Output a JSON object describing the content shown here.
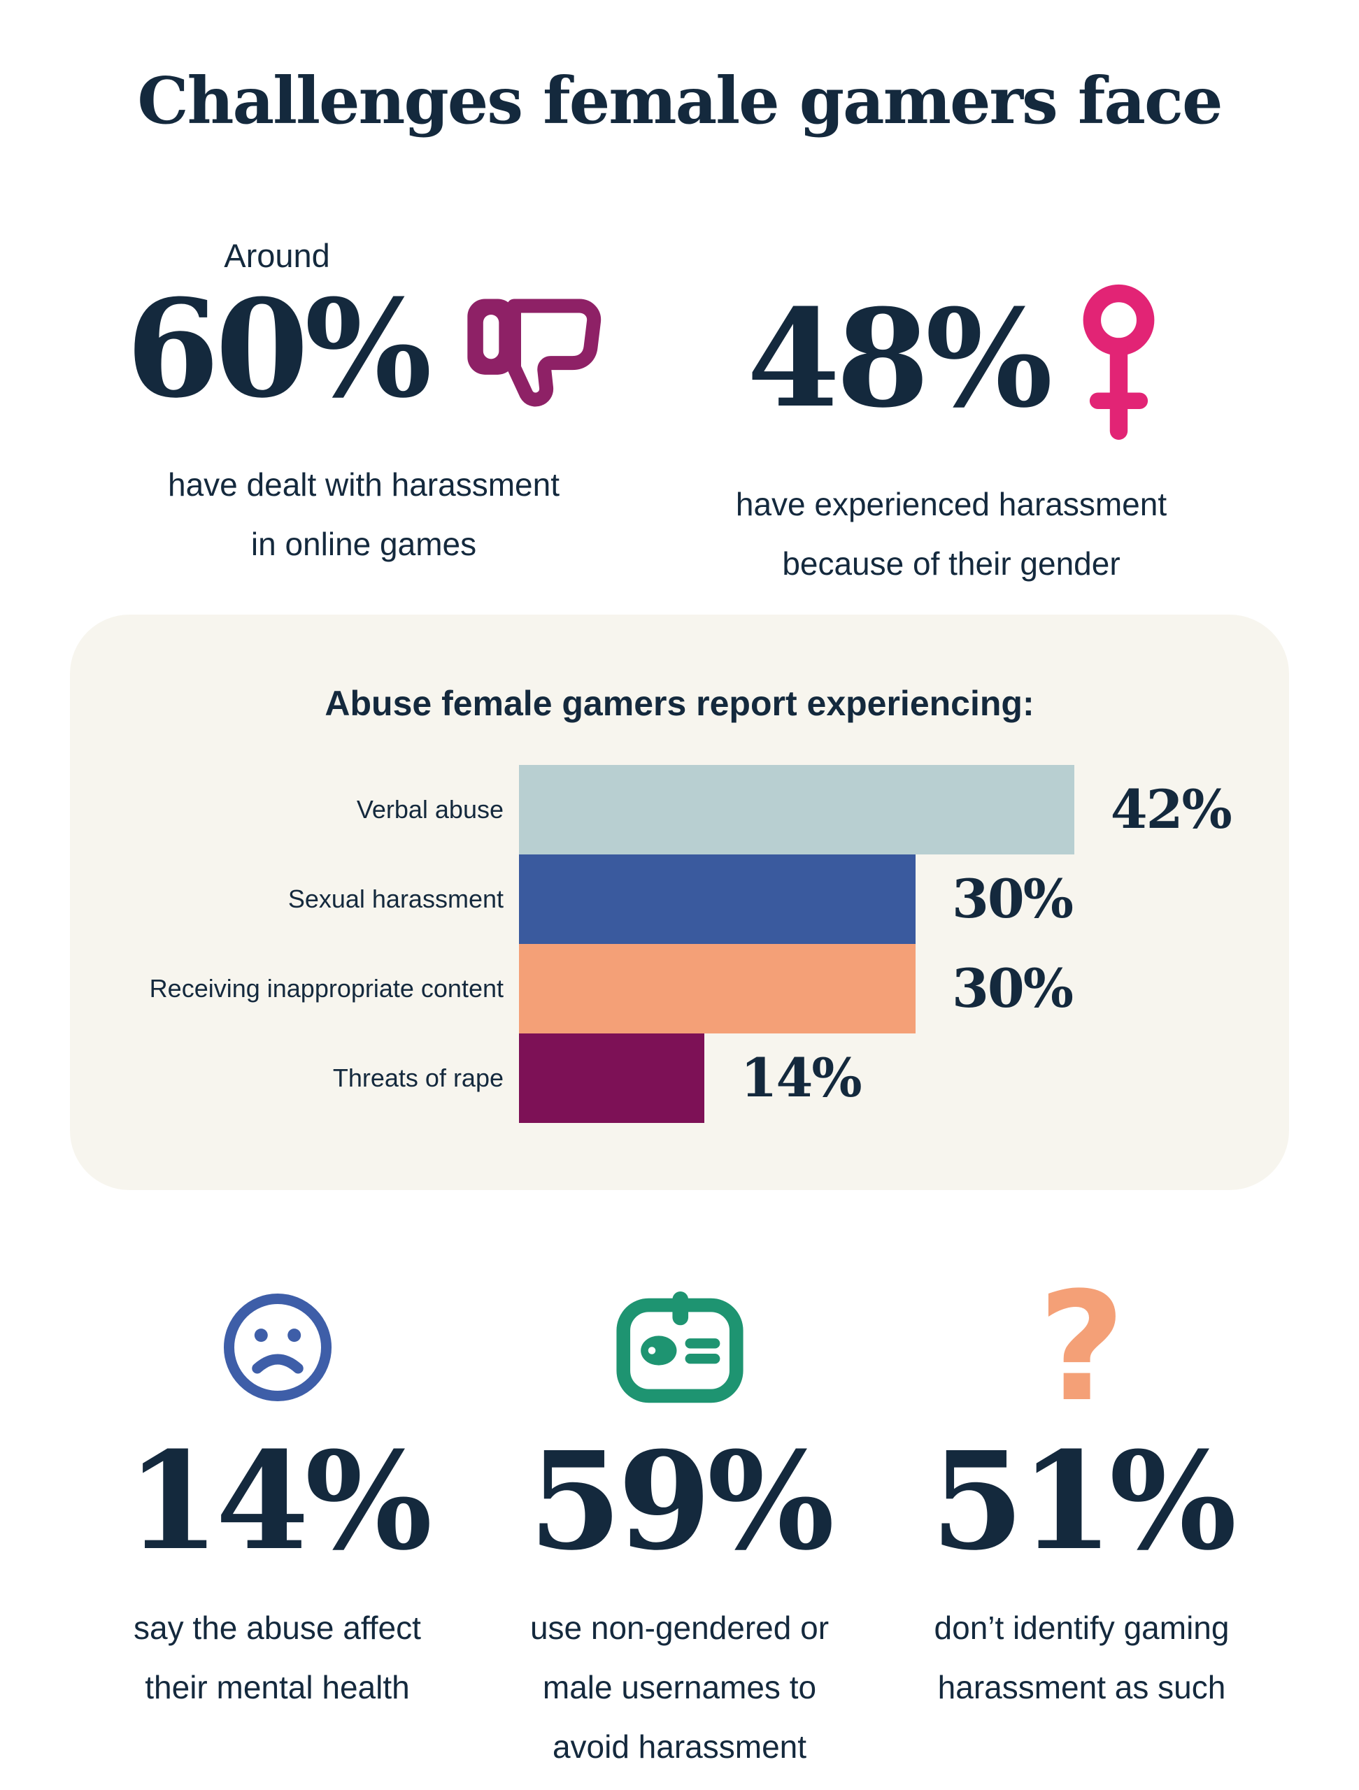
{
  "page_title": "Challenges female gamers face",
  "colors": {
    "text_navy": "#14293D",
    "page_bg": "#FFFFFF",
    "panel_bg": "#F7F5EE",
    "thumbs_down_magenta": "#8E2166",
    "female_pink": "#E22475",
    "sad_face_blue": "#3E5EA8",
    "id_badge_green": "#1E9471",
    "question_orange": "#F4A077"
  },
  "top_stats": [
    {
      "prefix": "Around",
      "value": "60%",
      "caption": "have dealt with harassment\nin online games",
      "icon": "thumbs-down-icon",
      "icon_color": "#8E2166"
    },
    {
      "prefix": "",
      "value": "48%",
      "caption": "have experienced harassment\nbecause of their gender",
      "icon": "female-icon",
      "icon_color": "#E22475"
    }
  ],
  "chart_data": {
    "type": "bar",
    "orientation": "horizontal",
    "title": "Abuse female gamers report experiencing:",
    "categories": [
      "Verbal abuse",
      "Sexual harassment",
      "Receiving inappropriate content",
      "Threats of rape"
    ],
    "values": [
      42,
      30,
      30,
      14
    ],
    "unit": "%",
    "data_labels": [
      "42%",
      "30%",
      "30%",
      "14%"
    ],
    "bar_colors": [
      "#B8CFD1",
      "#3A5A9E",
      "#F4A077",
      "#7D1156"
    ],
    "xlim": [
      0,
      46
    ],
    "grid": false,
    "legend": false,
    "background": "#F7F5EE"
  },
  "bottom_stats": [
    {
      "value": "14%",
      "caption": "say the abuse affect\ntheir mental health",
      "icon": "sad-face-icon",
      "icon_color": "#3E5EA8"
    },
    {
      "value": "59%",
      "caption": "use non-gendered or\nmale usernames to\navoid harassment",
      "icon": "id-badge-icon",
      "icon_color": "#1E9471"
    },
    {
      "value": "51%",
      "caption": "don’t identify gaming\nharassment as such",
      "icon": "question-mark-icon",
      "icon_color": "#F4A077"
    }
  ],
  "icons": {
    "question_glyph": "?"
  }
}
